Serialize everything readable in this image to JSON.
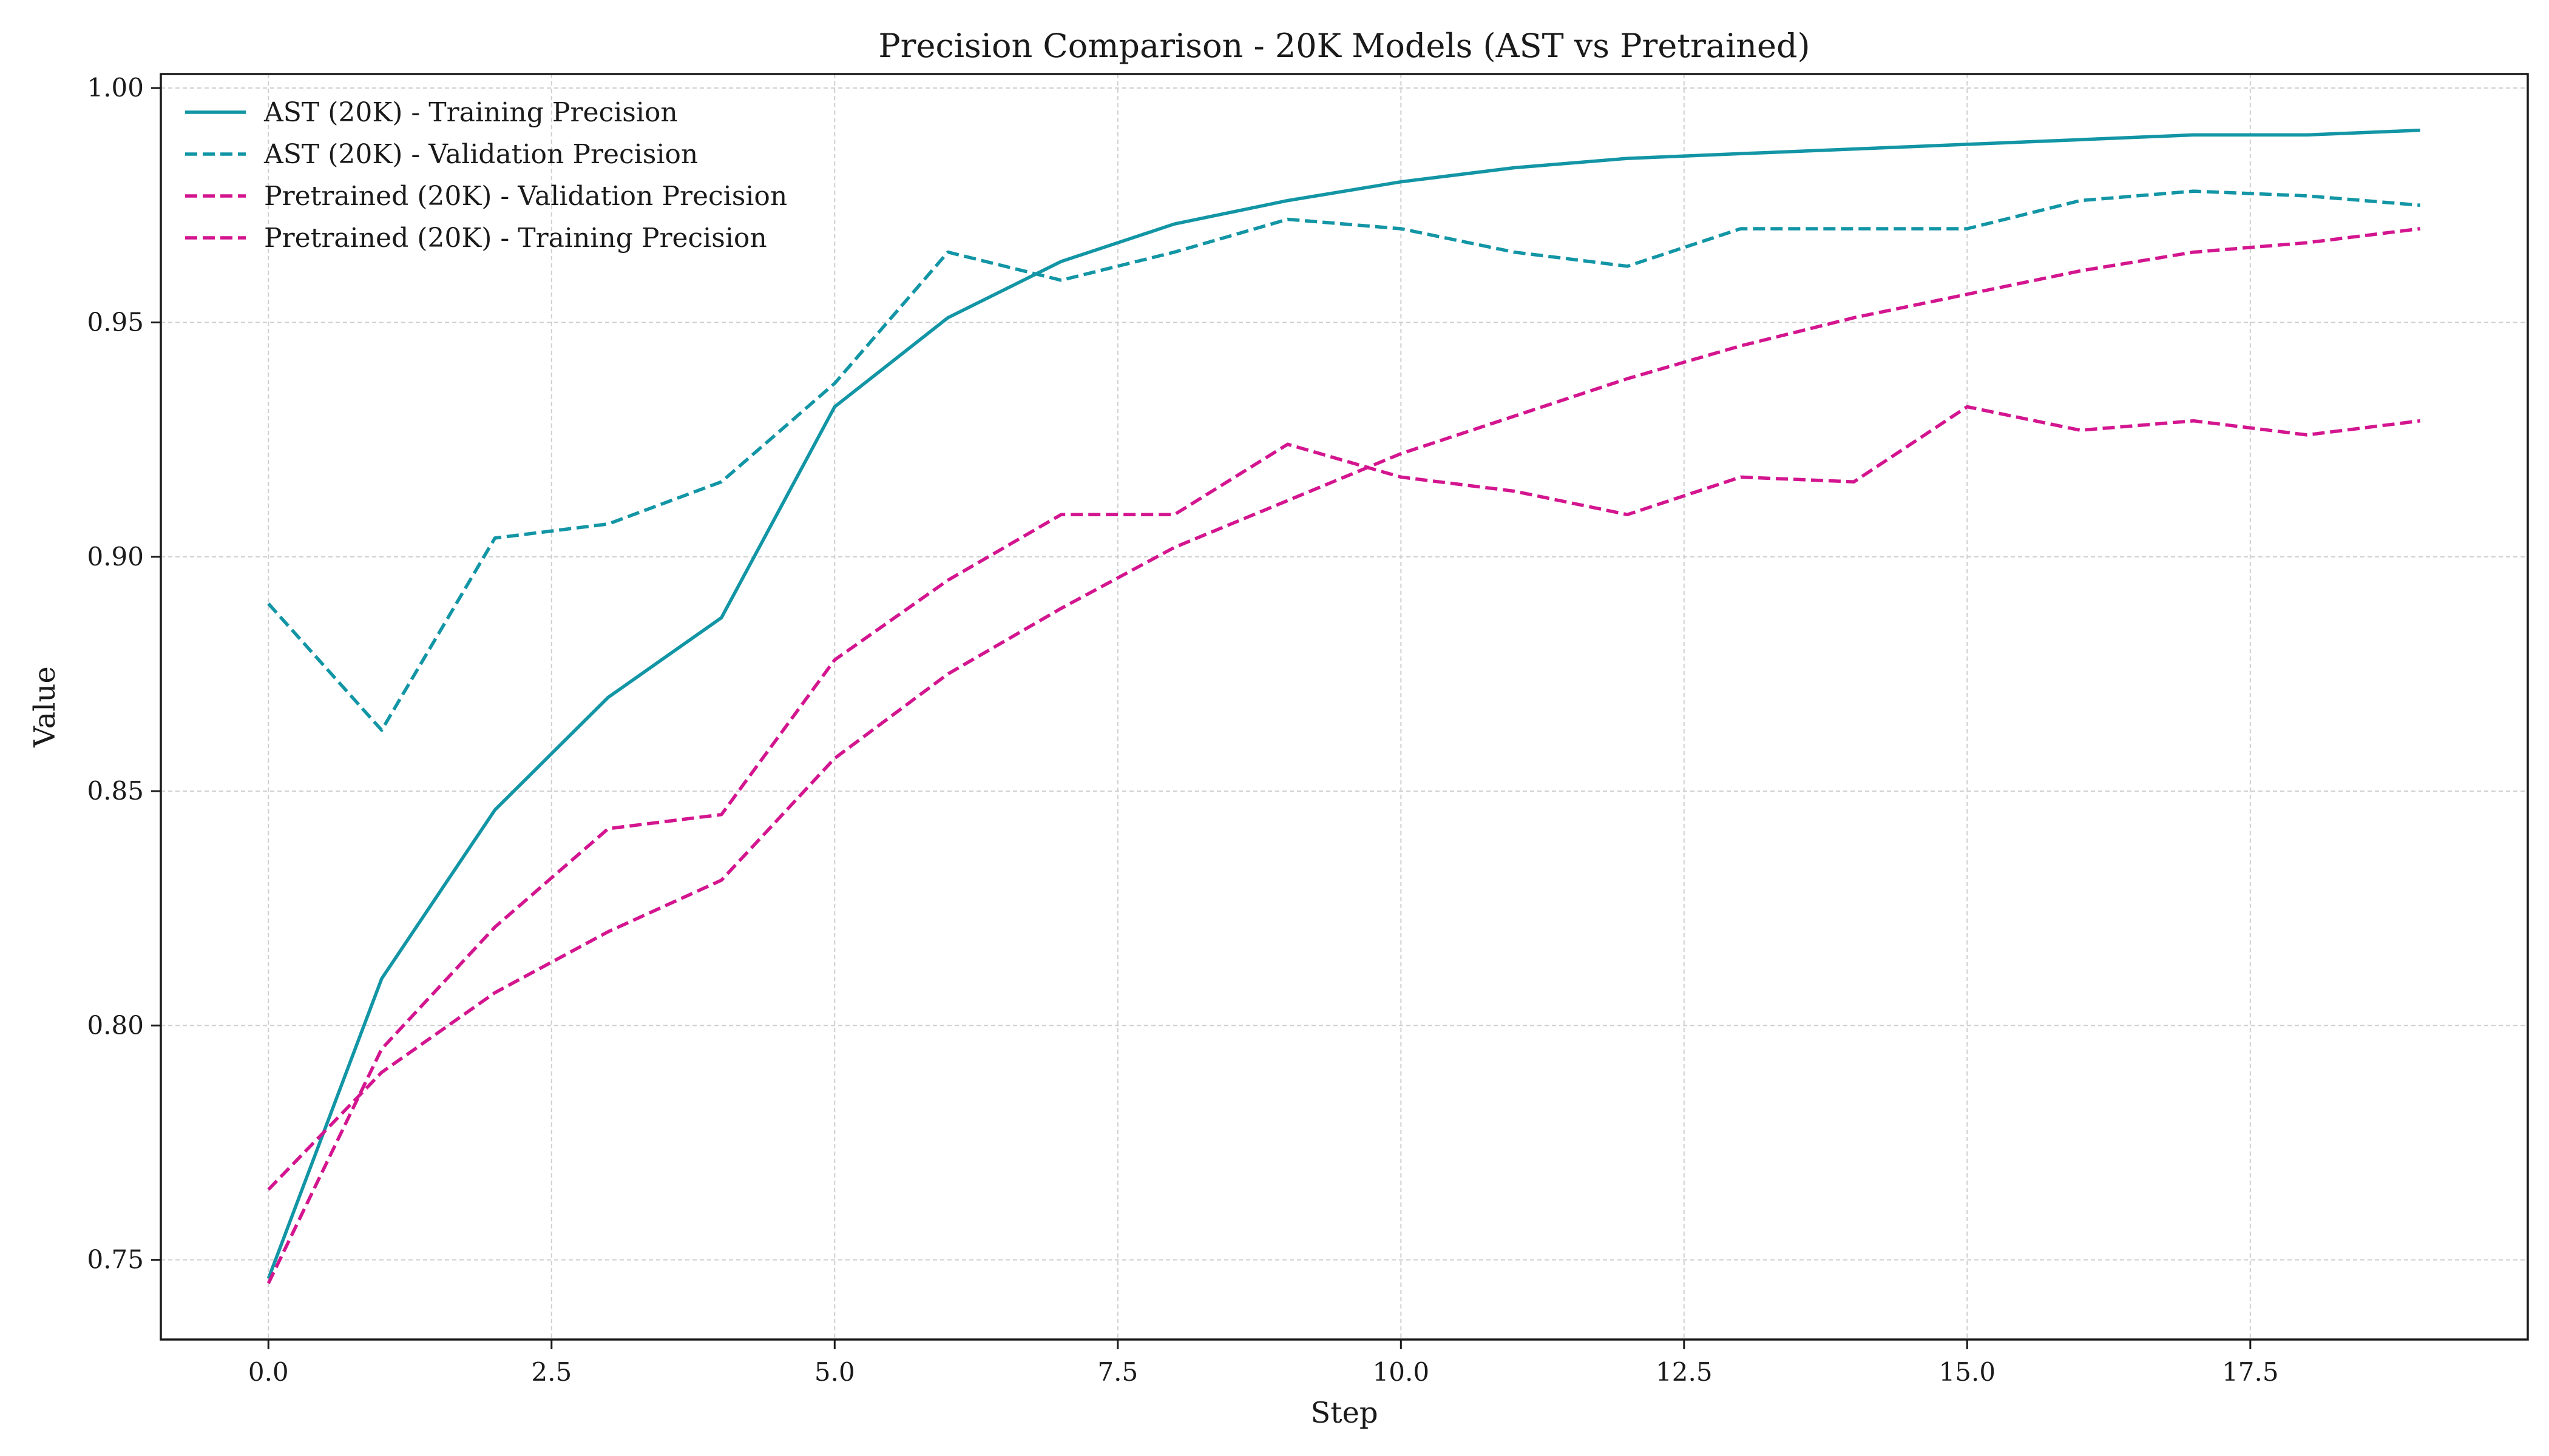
{
  "chart_data": {
    "type": "line",
    "title": "Precision Comparison - 20K Models (AST vs Pretrained)",
    "xlabel": "Step",
    "ylabel": "Value",
    "xlim": [
      -0.95,
      19.95
    ],
    "ylim": [
      0.733,
      1.003
    ],
    "xticks": [
      0.0,
      2.5,
      5.0,
      7.5,
      10.0,
      12.5,
      15.0,
      17.5
    ],
    "xtick_labels": [
      "0.0",
      "2.5",
      "5.0",
      "7.5",
      "10.0",
      "12.5",
      "15.0",
      "17.5"
    ],
    "yticks": [
      0.75,
      0.8,
      0.85,
      0.9,
      0.95,
      1.0
    ],
    "ytick_labels": [
      "0.75",
      "0.80",
      "0.85",
      "0.90",
      "0.95",
      "1.00"
    ],
    "grid": true,
    "legend_position": "top-left",
    "x": [
      0,
      1,
      2,
      3,
      4,
      5,
      6,
      7,
      8,
      9,
      10,
      11,
      12,
      13,
      14,
      15,
      16,
      17,
      18,
      19
    ],
    "series": [
      {
        "name": "AST (20K) - Training Precision",
        "color": "#1295A5",
        "style": "solid",
        "values": [
          0.746,
          0.81,
          0.846,
          0.87,
          0.887,
          0.932,
          0.951,
          0.963,
          0.971,
          0.976,
          0.98,
          0.983,
          0.985,
          0.986,
          0.987,
          0.988,
          0.989,
          0.99,
          0.99,
          0.991
        ]
      },
      {
        "name": "AST (20K) - Validation Precision",
        "color": "#1295A5",
        "style": "dashed",
        "values": [
          0.89,
          0.863,
          0.904,
          0.907,
          0.916,
          0.937,
          0.965,
          0.959,
          0.965,
          0.972,
          0.97,
          0.965,
          0.962,
          0.97,
          0.97,
          0.97,
          0.976,
          0.978,
          0.977,
          0.975
        ]
      },
      {
        "name": "Pretrained (20K) - Validation Precision",
        "color": "#D3158F",
        "style": "dashed",
        "values": [
          0.745,
          0.795,
          0.821,
          0.842,
          0.845,
          0.878,
          0.895,
          0.909,
          0.909,
          0.924,
          0.917,
          0.914,
          0.909,
          0.917,
          0.916,
          0.932,
          0.927,
          0.929,
          0.926,
          0.929
        ]
      },
      {
        "name": "Pretrained (20K) - Training Precision",
        "color": "#D3158F",
        "style": "dashed",
        "values": [
          0.765,
          0.79,
          0.807,
          0.82,
          0.831,
          0.857,
          0.875,
          0.889,
          0.902,
          0.912,
          0.922,
          0.93,
          0.938,
          0.945,
          0.951,
          0.956,
          0.961,
          0.965,
          0.967,
          0.97
        ]
      }
    ]
  }
}
